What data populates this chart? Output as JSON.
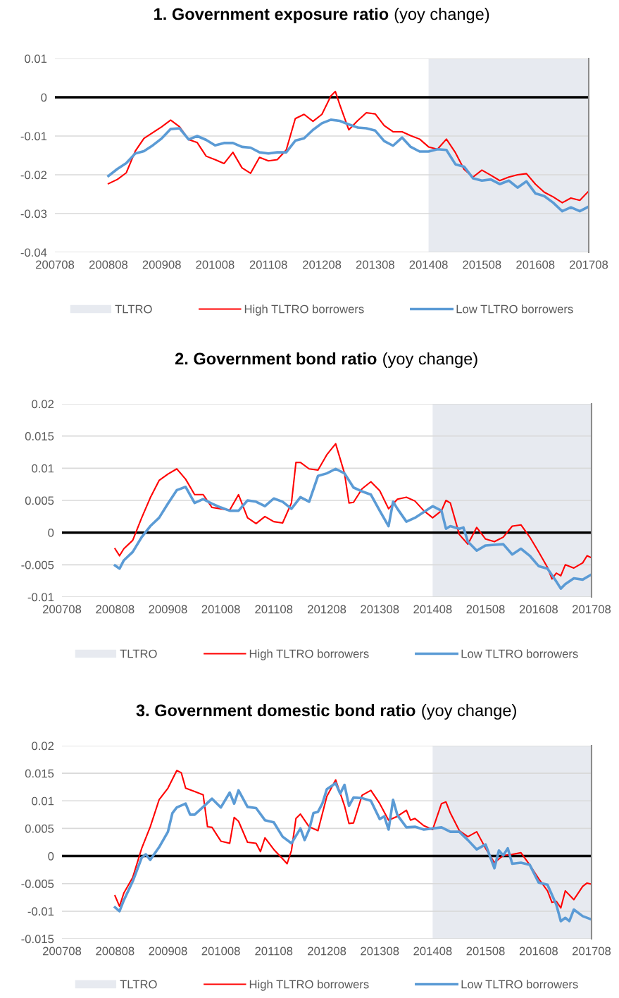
{
  "chart_data": [
    {
      "type": "line",
      "title": "1. Government exposure ratio",
      "subtitle": "(yoy change)",
      "xlim": [
        "2007-08",
        "2017-08"
      ],
      "ylim": [
        -0.04,
        0.01
      ],
      "yticks": [
        -0.04,
        -0.03,
        -0.02,
        -0.01,
        0,
        0.01
      ],
      "xticks": [
        {
          "value": "2007-08",
          "label": "200708"
        },
        {
          "value": "2008-08",
          "label": "200808"
        },
        {
          "value": "2009-08",
          "label": "200908"
        },
        {
          "value": "2010-08",
          "label": "201008"
        },
        {
          "value": "2011-08",
          "label": "201108"
        },
        {
          "value": "2012-08",
          "label": "201208"
        },
        {
          "value": "2013-08",
          "label": "201308"
        },
        {
          "value": "2014-08",
          "label": "201408"
        },
        {
          "value": "2015-08",
          "label": "201508"
        },
        {
          "value": "2016-08",
          "label": "201608"
        },
        {
          "value": "2017-08",
          "label": "201708"
        }
      ],
      "grid": "y",
      "legend": "bottom",
      "bands": [
        {
          "axis": "x",
          "from": "2014-08",
          "to": "2017-08",
          "label": "TLTRO",
          "color": "#e7eaf0"
        }
      ],
      "ref_lines": [
        {
          "axis": "y",
          "value": 0,
          "color": "#000000"
        }
      ],
      "series": [
        {
          "name": "High TLTRO borrowers",
          "color": "#ff0000",
          "x": [
            "2008-08",
            "2008-10",
            "2008-12",
            "2009-02",
            "2009-04",
            "2009-06",
            "2009-08",
            "2009-10",
            "2009-12",
            "2010-02",
            "2010-04",
            "2010-06",
            "2010-08",
            "2010-10",
            "2010-12",
            "2011-02",
            "2011-04",
            "2011-06",
            "2011-08",
            "2011-10",
            "2011-12",
            "2012-02",
            "2012-04",
            "2012-06",
            "2012-08",
            "2012-10",
            "2012-11",
            "2012-12",
            "2013-02",
            "2013-04",
            "2013-06",
            "2013-08",
            "2013-10",
            "2013-12",
            "2014-02",
            "2014-04",
            "2014-06",
            "2014-08",
            "2014-10",
            "2014-12",
            "2015-02",
            "2015-04",
            "2015-06",
            "2015-08",
            "2015-10",
            "2015-12",
            "2016-02",
            "2016-04",
            "2016-06",
            "2016-08",
            "2016-10",
            "2016-12",
            "2017-02",
            "2017-04",
            "2017-06",
            "2017-08"
          ],
          "values": [
            -0.0223,
            -0.0212,
            -0.0195,
            -0.0139,
            -0.0106,
            -0.0091,
            -0.0076,
            -0.0059,
            -0.0076,
            -0.0109,
            -0.0117,
            -0.0152,
            -0.0161,
            -0.0171,
            -0.0142,
            -0.0182,
            -0.0196,
            -0.0155,
            -0.0164,
            -0.0161,
            -0.0136,
            -0.0055,
            -0.0044,
            -0.0062,
            -0.0044,
            0.0003,
            0.0015,
            -0.0019,
            -0.0084,
            -0.0061,
            -0.004,
            -0.0043,
            -0.0073,
            -0.0089,
            -0.0089,
            -0.0099,
            -0.0108,
            -0.0128,
            -0.0134,
            -0.0108,
            -0.0143,
            -0.0186,
            -0.0206,
            -0.0188,
            -0.0201,
            -0.0215,
            -0.0206,
            -0.02,
            -0.0197,
            -0.0224,
            -0.0245,
            -0.0257,
            -0.0272,
            -0.026,
            -0.0266,
            -0.0242
          ]
        },
        {
          "name": "Low TLTRO borrowers",
          "color": "#5b9bd5",
          "x": [
            "2008-08",
            "2008-10",
            "2008-12",
            "2009-02",
            "2009-04",
            "2009-06",
            "2009-08",
            "2009-10",
            "2009-12",
            "2010-02",
            "2010-04",
            "2010-06",
            "2010-08",
            "2010-10",
            "2010-12",
            "2011-02",
            "2011-04",
            "2011-06",
            "2011-08",
            "2011-10",
            "2011-12",
            "2012-02",
            "2012-04",
            "2012-06",
            "2012-08",
            "2012-10",
            "2012-12",
            "2013-02",
            "2013-04",
            "2013-06",
            "2013-08",
            "2013-10",
            "2013-12",
            "2014-02",
            "2014-04",
            "2014-06",
            "2014-08",
            "2014-10",
            "2014-12",
            "2015-02",
            "2015-04",
            "2015-06",
            "2015-08",
            "2015-10",
            "2015-12",
            "2016-02",
            "2016-04",
            "2016-06",
            "2016-08",
            "2016-10",
            "2016-12",
            "2017-02",
            "2017-04",
            "2017-06",
            "2017-08"
          ],
          "values": [
            -0.0203,
            -0.0185,
            -0.017,
            -0.0145,
            -0.0139,
            -0.0124,
            -0.0106,
            -0.0082,
            -0.008,
            -0.0109,
            -0.01,
            -0.011,
            -0.0124,
            -0.0118,
            -0.0118,
            -0.0128,
            -0.013,
            -0.0142,
            -0.0145,
            -0.0142,
            -0.0142,
            -0.0112,
            -0.0106,
            -0.0084,
            -0.0067,
            -0.0058,
            -0.0061,
            -0.007,
            -0.0078,
            -0.008,
            -0.0086,
            -0.0113,
            -0.0125,
            -0.0104,
            -0.0128,
            -0.014,
            -0.014,
            -0.0134,
            -0.0136,
            -0.0173,
            -0.0179,
            -0.0209,
            -0.0215,
            -0.0212,
            -0.0224,
            -0.0215,
            -0.0233,
            -0.0217,
            -0.0248,
            -0.0255,
            -0.0272,
            -0.0294,
            -0.0284,
            -0.0294,
            -0.0282
          ]
        }
      ]
    },
    {
      "type": "line",
      "title": "2. Government bond ratio",
      "subtitle": "(yoy change)",
      "xlim": [
        "2007-08",
        "2017-08"
      ],
      "ylim": [
        -0.01,
        0.02
      ],
      "yticks": [
        -0.01,
        -0.005,
        0,
        0.005,
        0.01,
        0.015,
        0.02
      ],
      "xticks": [
        {
          "value": "2007-08",
          "label": "200708"
        },
        {
          "value": "2008-08",
          "label": "200808"
        },
        {
          "value": "2009-08",
          "label": "200908"
        },
        {
          "value": "2010-08",
          "label": "201008"
        },
        {
          "value": "2011-08",
          "label": "201108"
        },
        {
          "value": "2012-08",
          "label": "201208"
        },
        {
          "value": "2013-08",
          "label": "201308"
        },
        {
          "value": "2014-08",
          "label": "201408"
        },
        {
          "value": "2015-08",
          "label": "201508"
        },
        {
          "value": "2016-08",
          "label": "201608"
        },
        {
          "value": "2017-08",
          "label": "201708"
        }
      ],
      "grid": "y",
      "legend": "bottom",
      "bands": [
        {
          "axis": "x",
          "from": "2014-08",
          "to": "2017-08",
          "label": "TLTRO",
          "color": "#e7eaf0"
        }
      ],
      "ref_lines": [
        {
          "axis": "y",
          "value": 0,
          "color": "#000000"
        }
      ],
      "series": [
        {
          "name": "High TLTRO borrowers",
          "color": "#ff0000",
          "x": [
            "2008-08",
            "2008-09",
            "2008-10",
            "2008-12",
            "2009-02",
            "2009-04",
            "2009-06",
            "2009-08",
            "2009-10",
            "2009-12",
            "2010-02",
            "2010-04",
            "2010-06",
            "2010-08",
            "2010-10",
            "2010-12",
            "2011-02",
            "2011-04",
            "2011-06",
            "2011-08",
            "2011-10",
            "2011-12",
            "2012-01",
            "2012-02",
            "2012-04",
            "2012-06",
            "2012-08",
            "2012-10",
            "2012-12",
            "2013-01",
            "2013-02",
            "2013-04",
            "2013-06",
            "2013-08",
            "2013-10",
            "2013-12",
            "2014-02",
            "2014-04",
            "2014-06",
            "2014-08",
            "2014-10",
            "2014-11",
            "2014-12",
            "2015-02",
            "2015-04",
            "2015-06",
            "2015-08",
            "2015-10",
            "2015-12",
            "2016-02",
            "2016-04",
            "2016-06",
            "2016-08",
            "2016-10",
            "2016-11",
            "2016-12",
            "2017-01",
            "2017-02",
            "2017-04",
            "2017-06",
            "2017-07",
            "2017-08"
          ],
          "values": [
            -0.0025,
            -0.0036,
            -0.0025,
            -0.0012,
            0.0023,
            0.0054,
            0.0081,
            0.0091,
            0.0099,
            0.0083,
            0.0059,
            0.0059,
            0.0039,
            0.0037,
            0.0035,
            0.0059,
            0.0023,
            0.0014,
            0.0025,
            0.0017,
            0.0015,
            0.0046,
            0.0109,
            0.0109,
            0.0099,
            0.0097,
            0.0121,
            0.0138,
            0.0092,
            0.0046,
            0.0047,
            0.0068,
            0.0079,
            0.0065,
            0.0037,
            0.0052,
            0.0055,
            0.0049,
            0.0034,
            0.0023,
            0.0034,
            0.005,
            0.0046,
            -0.0003,
            -0.0018,
            0.0008,
            -0.001,
            -0.0014,
            -0.0007,
            0.001,
            0.0012,
            -0.0007,
            -0.003,
            -0.0054,
            -0.0072,
            -0.0063,
            -0.0067,
            -0.005,
            -0.0055,
            -0.0047,
            -0.0036,
            -0.0039
          ]
        },
        {
          "name": "Low TLTRO borrowers",
          "color": "#5b9bd5",
          "x": [
            "2008-08",
            "2008-09",
            "2008-10",
            "2008-12",
            "2009-02",
            "2009-04",
            "2009-06",
            "2009-08",
            "2009-10",
            "2009-12",
            "2010-02",
            "2010-04",
            "2010-06",
            "2010-08",
            "2010-10",
            "2010-12",
            "2011-02",
            "2011-04",
            "2011-06",
            "2011-08",
            "2011-10",
            "2011-12",
            "2012-02",
            "2012-04",
            "2012-06",
            "2012-08",
            "2012-10",
            "2012-12",
            "2013-02",
            "2013-04",
            "2013-06",
            "2013-08",
            "2013-10",
            "2013-11",
            "2013-12",
            "2014-02",
            "2014-04",
            "2014-06",
            "2014-08",
            "2014-10",
            "2014-11",
            "2014-12",
            "2015-02",
            "2015-03",
            "2015-04",
            "2015-06",
            "2015-08",
            "2015-10",
            "2015-12",
            "2016-02",
            "2016-04",
            "2016-06",
            "2016-08",
            "2016-10",
            "2016-12",
            "2017-01",
            "2017-02",
            "2017-04",
            "2017-06",
            "2017-08"
          ],
          "values": [
            -0.0051,
            -0.0056,
            -0.0043,
            -0.003,
            -0.0007,
            0.001,
            0.0023,
            0.0045,
            0.0066,
            0.0071,
            0.0046,
            0.0052,
            0.0045,
            0.0039,
            0.0034,
            0.0034,
            0.005,
            0.0048,
            0.0041,
            0.0053,
            0.0048,
            0.0037,
            0.0055,
            0.0048,
            0.0088,
            0.0092,
            0.0099,
            0.0092,
            0.007,
            0.0064,
            0.0059,
            0.0034,
            0.001,
            0.0048,
            0.0037,
            0.0017,
            0.0023,
            0.0032,
            0.0041,
            0.0034,
            0.0006,
            0.001,
            0.0006,
            0.0008,
            -0.0014,
            -0.0028,
            -0.002,
            -0.0019,
            -0.0018,
            -0.0034,
            -0.0025,
            -0.0036,
            -0.0052,
            -0.0056,
            -0.0076,
            -0.0087,
            -0.008,
            -0.0071,
            -0.0073,
            -0.0065
          ]
        }
      ]
    },
    {
      "type": "line",
      "title": "3. Government domestic bond ratio",
      "subtitle": "(yoy change)",
      "xlim": [
        "2007-08",
        "2017-08"
      ],
      "ylim": [
        -0.015,
        0.02
      ],
      "yticks": [
        -0.015,
        -0.01,
        -0.005,
        0,
        0.005,
        0.01,
        0.015,
        0.02
      ],
      "xticks": [
        {
          "value": "2007-08",
          "label": "200708"
        },
        {
          "value": "2008-08",
          "label": "200808"
        },
        {
          "value": "2009-08",
          "label": "200908"
        },
        {
          "value": "2010-08",
          "label": "201008"
        },
        {
          "value": "2011-08",
          "label": "201108"
        },
        {
          "value": "2012-08",
          "label": "201208"
        },
        {
          "value": "2013-08",
          "label": "201308"
        },
        {
          "value": "2014-08",
          "label": "201408"
        },
        {
          "value": "2015-08",
          "label": "201508"
        },
        {
          "value": "2016-08",
          "label": "201608"
        },
        {
          "value": "2017-08",
          "label": "201708"
        }
      ],
      "grid": "y",
      "legend": "bottom",
      "bands": [
        {
          "axis": "x",
          "from": "2014-08",
          "to": "2017-08",
          "label": "TLTRO",
          "color": "#e7eaf0"
        }
      ],
      "ref_lines": [
        {
          "axis": "y",
          "value": 0,
          "color": "#000000"
        }
      ],
      "series": [
        {
          "name": "High TLTRO borrowers",
          "color": "#ff0000",
          "x": [
            "2008-08",
            "2008-09",
            "2008-10",
            "2008-12",
            "2009-02",
            "2009-04",
            "2009-06",
            "2009-08",
            "2009-10",
            "2009-11",
            "2009-12",
            "2010-02",
            "2010-04",
            "2010-05",
            "2010-06",
            "2010-08",
            "2010-10",
            "2010-11",
            "2010-12",
            "2011-02",
            "2011-04",
            "2011-05",
            "2011-06",
            "2011-08",
            "2011-10",
            "2011-11",
            "2011-12",
            "2012-01",
            "2012-02",
            "2012-04",
            "2012-06",
            "2012-08",
            "2012-10",
            "2012-12",
            "2013-01",
            "2013-02",
            "2013-04",
            "2013-06",
            "2013-08",
            "2013-10",
            "2013-12",
            "2014-02",
            "2014-03",
            "2014-04",
            "2014-06",
            "2014-08",
            "2014-10",
            "2014-11",
            "2014-12",
            "2015-02",
            "2015-04",
            "2015-06",
            "2015-08",
            "2015-10",
            "2015-12",
            "2016-02",
            "2016-04",
            "2016-06",
            "2016-08",
            "2016-10",
            "2016-11",
            "2016-12",
            "2017-01",
            "2017-02",
            "2017-04",
            "2017-06",
            "2017-07",
            "2017-08"
          ],
          "values": [
            -0.0072,
            -0.0091,
            -0.0067,
            -0.0039,
            0.0014,
            0.0053,
            0.0102,
            0.0123,
            0.0155,
            0.0151,
            0.0123,
            0.0117,
            0.0111,
            0.0053,
            0.0052,
            0.0027,
            0.0023,
            0.007,
            0.0063,
            0.0025,
            0.0023,
            0.0008,
            0.0033,
            0.0012,
            -0.0005,
            -0.0014,
            0.001,
            0.0068,
            0.0076,
            0.0053,
            0.0046,
            0.0108,
            0.0138,
            0.0091,
            0.0059,
            0.006,
            0.011,
            0.0119,
            0.0095,
            0.0065,
            0.0072,
            0.0083,
            0.0065,
            0.0068,
            0.0055,
            0.0048,
            0.0095,
            0.0098,
            0.0078,
            0.0046,
            0.0035,
            0.0044,
            0.0014,
            -0.0012,
            0.0001,
            0.0003,
            0.0006,
            -0.0016,
            -0.0041,
            -0.0063,
            -0.0084,
            -0.0082,
            -0.0094,
            -0.0063,
            -0.0079,
            -0.0055,
            -0.0049,
            -0.0051
          ]
        },
        {
          "name": "Low TLTRO borrowers",
          "color": "#5b9bd5",
          "x": [
            "2008-08",
            "2008-09",
            "2008-10",
            "2008-12",
            "2009-02",
            "2009-03",
            "2009-04",
            "2009-06",
            "2009-08",
            "2009-09",
            "2009-10",
            "2009-12",
            "2010-01",
            "2010-02",
            "2010-04",
            "2010-06",
            "2010-08",
            "2010-10",
            "2010-11",
            "2010-12",
            "2011-02",
            "2011-04",
            "2011-06",
            "2011-08",
            "2011-10",
            "2011-12",
            "2012-02",
            "2012-03",
            "2012-04",
            "2012-05",
            "2012-06",
            "2012-07",
            "2012-08",
            "2012-10",
            "2012-11",
            "2012-12",
            "2013-01",
            "2013-02",
            "2013-04",
            "2013-06",
            "2013-08",
            "2013-09",
            "2013-10",
            "2013-11",
            "2013-12",
            "2014-02",
            "2014-04",
            "2014-06",
            "2014-08",
            "2014-10",
            "2014-12",
            "2015-02",
            "2015-04",
            "2015-06",
            "2015-08",
            "2015-10",
            "2015-11",
            "2015-12",
            "2016-01",
            "2016-02",
            "2016-04",
            "2016-06",
            "2016-08",
            "2016-10",
            "2016-12",
            "2017-01",
            "2017-02",
            "2017-03",
            "2017-04",
            "2017-06",
            "2017-08"
          ],
          "values": [
            -0.0093,
            -0.01,
            -0.008,
            -0.0046,
            -0.0003,
            0.0003,
            -0.0007,
            0.0016,
            0.0044,
            0.0078,
            0.0088,
            0.0095,
            0.0075,
            0.0075,
            0.0089,
            0.0104,
            0.0088,
            0.0115,
            0.0095,
            0.0119,
            0.0089,
            0.0087,
            0.0065,
            0.0061,
            0.0035,
            0.0023,
            0.005,
            0.0029,
            0.0048,
            0.0078,
            0.008,
            0.0095,
            0.0121,
            0.0132,
            0.0113,
            0.0129,
            0.0091,
            0.0106,
            0.0105,
            0.01,
            0.0067,
            0.0072,
            0.0048,
            0.0102,
            0.0074,
            0.0052,
            0.0053,
            0.0048,
            0.005,
            0.0052,
            0.0044,
            0.0044,
            0.0029,
            0.0012,
            0.0021,
            -0.0022,
            0.001,
            0.0001,
            0.0014,
            -0.0014,
            -0.0012,
            -0.0016,
            -0.0048,
            -0.0052,
            -0.0088,
            -0.0118,
            -0.0112,
            -0.0118,
            -0.0097,
            -0.0109,
            -0.0115
          ]
        }
      ]
    }
  ]
}
